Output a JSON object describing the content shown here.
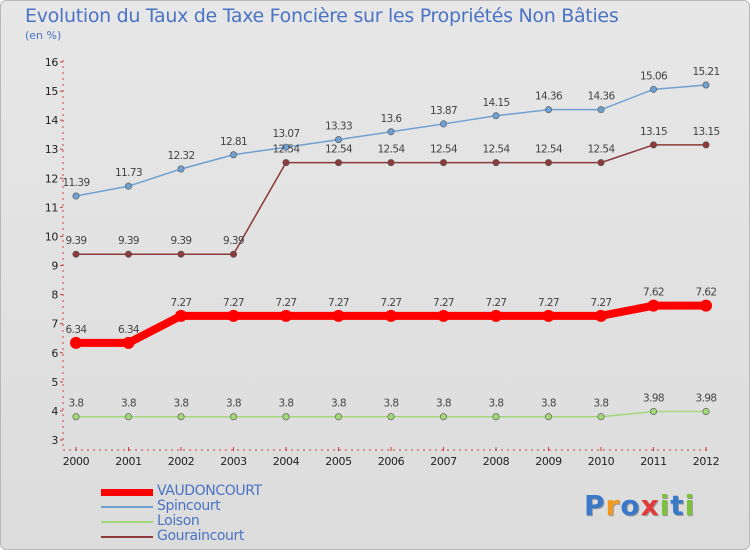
{
  "chart_data": {
    "type": "line",
    "title": "Evolution du Taux de Taxe Foncière sur les Propriétés Non Bâties",
    "unit_label": "(en %)",
    "xlabel": "",
    "ylabel": "(en %)",
    "x": [
      "2000",
      "2001",
      "2002",
      "2003",
      "2004",
      "2005",
      "2006",
      "2007",
      "2008",
      "2009",
      "2010",
      "2011",
      "2012"
    ],
    "ylim": [
      3,
      16
    ],
    "yticks": [
      "3",
      "4",
      "5",
      "6",
      "7",
      "8",
      "9",
      "10",
      "11",
      "12",
      "13",
      "14",
      "15",
      "16"
    ],
    "series": [
      {
        "name": "VAUDONCOURT",
        "color": "#ff0000",
        "values": [
          6.34,
          6.34,
          7.27,
          7.27,
          7.27,
          7.27,
          7.27,
          7.27,
          7.27,
          7.27,
          7.27,
          7.62,
          7.62
        ],
        "labels": [
          "6.34",
          "6.34",
          "7.27",
          "7.27",
          "7.27",
          "7.27",
          "7.27",
          "7.27",
          "7.27",
          "7.27",
          "7.27",
          "7.62",
          "7.62"
        ]
      },
      {
        "name": "Spincourt",
        "color": "#6fa0d2",
        "values": [
          11.39,
          11.73,
          12.32,
          12.81,
          13.07,
          13.33,
          13.6,
          13.87,
          14.15,
          14.36,
          14.36,
          15.06,
          15.21
        ],
        "labels": [
          "11.39",
          "11.73",
          "12.32",
          "12.81",
          "13.07",
          "13.33",
          "13.6",
          "13.87",
          "14.15",
          "14.36",
          "14.36",
          "15.06",
          "15.21"
        ]
      },
      {
        "name": "Loison",
        "color": "#a2d87a",
        "values": [
          3.8,
          3.8,
          3.8,
          3.8,
          3.8,
          3.8,
          3.8,
          3.8,
          3.8,
          3.8,
          3.8,
          3.98,
          3.98
        ],
        "labels": [
          "3.8",
          "3.8",
          "3.8",
          "3.8",
          "3.8",
          "3.8",
          "3.8",
          "3.8",
          "3.8",
          "3.8",
          "3.8",
          "3.98",
          "3.98"
        ]
      },
      {
        "name": "Gouraincourt",
        "color": "#8c3a3a",
        "values": [
          9.39,
          9.39,
          9.39,
          9.39,
          12.54,
          12.54,
          12.54,
          12.54,
          12.54,
          12.54,
          12.54,
          13.15,
          13.15
        ],
        "labels": [
          "9.39",
          "9.39",
          "9.39",
          "9.39",
          "12.54",
          "12.54",
          "12.54",
          "12.54",
          "12.54",
          "12.54",
          "12.54",
          "13.15",
          "13.15"
        ]
      }
    ],
    "legend_position": "bottom-left",
    "grid": false
  },
  "logo": {
    "letters": [
      "P",
      "r",
      "o",
      "x",
      "i",
      "t",
      "i"
    ],
    "colors": [
      "#3a78c8",
      "#f29a1f",
      "#3a78c8",
      "#e23b3b",
      "#7cc23a",
      "#3a78c8",
      "#7cc23a"
    ]
  }
}
